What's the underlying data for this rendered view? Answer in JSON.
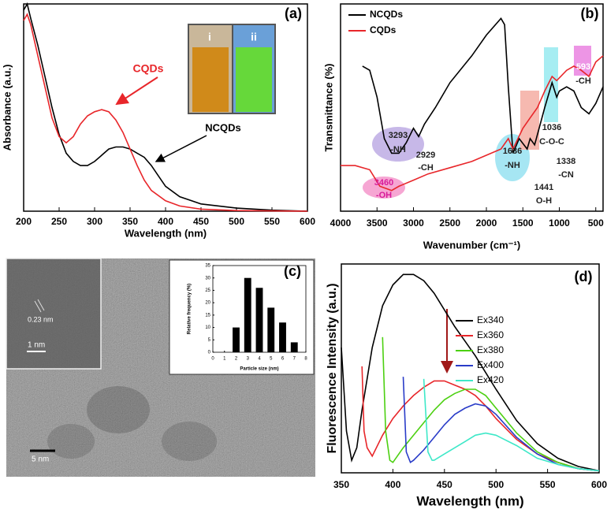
{
  "chart_data": [
    {
      "type": "line",
      "label": "(a)",
      "x_label": "Wavelength (nm)",
      "y_label": "Absorbance (a.u.)",
      "xlim": [
        200,
        600
      ],
      "xticks": [
        200,
        250,
        300,
        350,
        400,
        450,
        500,
        550,
        600
      ],
      "ylim": [
        0,
        1
      ],
      "inset_labels": [
        "i",
        "ii"
      ],
      "series": [
        {
          "name": "NCQDs",
          "color": "#000000",
          "x": [
            200,
            205,
            210,
            220,
            230,
            240,
            250,
            260,
            270,
            280,
            290,
            300,
            310,
            320,
            330,
            340,
            350,
            360,
            370,
            380,
            390,
            400,
            420,
            450,
            500,
            550,
            600
          ],
          "values": [
            0.97,
            1.0,
            0.93,
            0.8,
            0.65,
            0.5,
            0.37,
            0.28,
            0.24,
            0.22,
            0.22,
            0.24,
            0.27,
            0.3,
            0.31,
            0.31,
            0.3,
            0.28,
            0.26,
            0.22,
            0.17,
            0.12,
            0.07,
            0.035,
            0.015,
            0.005,
            0.0
          ]
        },
        {
          "name": "CQDs",
          "color": "#e8262a",
          "x": [
            200,
            205,
            210,
            220,
            230,
            240,
            250,
            260,
            270,
            280,
            290,
            300,
            310,
            320,
            330,
            340,
            350,
            360,
            370,
            380,
            400,
            420,
            450,
            500,
            600
          ],
          "values": [
            0.92,
            0.95,
            0.9,
            0.75,
            0.6,
            0.45,
            0.36,
            0.33,
            0.36,
            0.42,
            0.46,
            0.48,
            0.49,
            0.48,
            0.44,
            0.38,
            0.3,
            0.22,
            0.15,
            0.1,
            0.05,
            0.025,
            0.01,
            0.003,
            0.0
          ]
        }
      ]
    },
    {
      "type": "line",
      "label": "(b)",
      "x_label": "Wavenumber (cm⁻¹)",
      "y_label": "Transmittance (%)",
      "xlim": [
        4000,
        400
      ],
      "xticks": [
        4000,
        3500,
        3000,
        2500,
        2000,
        1500,
        1000,
        500
      ],
      "ylim": [
        0,
        1
      ],
      "legend": "top-left",
      "annotations": [
        "3293",
        "-NH",
        "2929",
        "-CH",
        "3460",
        "-OH",
        "1636",
        "-NH",
        "1441",
        "O-H",
        "1338",
        "-CN",
        "1036",
        "C-O-C",
        "593",
        "-CH"
      ],
      "series": [
        {
          "name": "NCQDs",
          "color": "#000000",
          "x": [
            3700,
            3600,
            3500,
            3400,
            3300,
            3200,
            3100,
            3000,
            2929,
            2850,
            2700,
            2500,
            2200,
            2000,
            1800,
            1750,
            1700,
            1636,
            1550,
            1441,
            1400,
            1338,
            1200,
            1100,
            1036,
            1000,
            900,
            800,
            700,
            593,
            500,
            400
          ],
          "values": [
            0.7,
            0.68,
            0.55,
            0.35,
            0.28,
            0.28,
            0.33,
            0.4,
            0.36,
            0.42,
            0.5,
            0.62,
            0.75,
            0.85,
            0.93,
            0.9,
            0.6,
            0.28,
            0.35,
            0.3,
            0.35,
            0.32,
            0.5,
            0.62,
            0.55,
            0.58,
            0.6,
            0.58,
            0.5,
            0.47,
            0.52,
            0.6
          ]
        },
        {
          "name": "CQDs",
          "color": "#e8262a",
          "x": [
            4000,
            3800,
            3600,
            3460,
            3300,
            3200,
            3000,
            2800,
            2500,
            2200,
            2000,
            1800,
            1700,
            1636,
            1500,
            1400,
            1300,
            1200,
            1100,
            1036,
            900,
            800,
            700,
            593,
            500,
            400
          ],
          "values": [
            0.22,
            0.22,
            0.2,
            0.12,
            0.1,
            0.12,
            0.15,
            0.18,
            0.21,
            0.24,
            0.27,
            0.3,
            0.35,
            0.3,
            0.4,
            0.45,
            0.5,
            0.58,
            0.65,
            0.63,
            0.68,
            0.7,
            0.68,
            0.65,
            0.72,
            0.75
          ]
        }
      ]
    },
    {
      "type": "bar",
      "x_label": "Particle size (nm)",
      "y_label": "Relative frequency (%)",
      "color": "#000000",
      "x": [
        2,
        3,
        4,
        5,
        6,
        7
      ],
      "values": [
        10,
        30,
        26,
        18,
        12,
        4
      ],
      "xlim": [
        0,
        8
      ],
      "xticks": [
        0,
        1,
        2,
        3,
        4,
        5,
        6,
        7,
        8
      ],
      "ylim": [
        0,
        35
      ],
      "yticks": [
        0,
        5,
        10,
        15,
        20,
        25,
        30,
        35
      ]
    },
    {
      "type": "line",
      "label": "(d)",
      "x_label": "Wavelength (nm)",
      "y_label": "Fluorescence  Intensity (a.u.)",
      "xlim": [
        350,
        600
      ],
      "xticks": [
        350,
        400,
        450,
        500,
        550,
        600
      ],
      "ylim": [
        0,
        100
      ],
      "legend": "top-right",
      "series": [
        {
          "name": "Ex340",
          "color": "#000000",
          "x": [
            350,
            355,
            360,
            365,
            370,
            380,
            390,
            400,
            410,
            420,
            430,
            440,
            450,
            460,
            470,
            480,
            490,
            500,
            520,
            540,
            560,
            580,
            600
          ],
          "values": [
            60,
            20,
            6,
            12,
            30,
            60,
            80,
            90,
            95,
            95,
            92,
            86,
            78,
            70,
            63,
            56,
            48,
            40,
            25,
            14,
            7,
            3,
            1
          ]
        },
        {
          "name": "Ex360",
          "color": "#e8262a",
          "x": [
            370,
            372,
            375,
            380,
            390,
            400,
            410,
            420,
            430,
            440,
            450,
            460,
            470,
            480,
            490,
            500,
            520,
            540,
            560,
            580,
            600
          ],
          "values": [
            51,
            20,
            12,
            8,
            18,
            26,
            32,
            37,
            41,
            44,
            44,
            42,
            40,
            37,
            32,
            26,
            16,
            9,
            5,
            2,
            1
          ]
        },
        {
          "name": "Ex380",
          "color": "#4cd011",
          "x": [
            390,
            393,
            397,
            400,
            410,
            420,
            430,
            440,
            450,
            460,
            470,
            480,
            490,
            500,
            520,
            540,
            560,
            580,
            600
          ],
          "values": [
            65,
            20,
            6,
            5,
            12,
            18,
            24,
            30,
            35,
            38,
            40,
            40,
            37,
            31,
            19,
            10,
            5,
            2,
            1
          ]
        },
        {
          "name": "Ex400",
          "color": "#2a3cc8",
          "x": [
            410,
            413,
            417,
            420,
            430,
            440,
            450,
            460,
            470,
            480,
            490,
            500,
            520,
            540,
            560,
            580,
            600
          ],
          "values": [
            46,
            10,
            5,
            6,
            11,
            17,
            23,
            28,
            31,
            33,
            32,
            28,
            17,
            9,
            4,
            2,
            1
          ]
        },
        {
          "name": "Ex420",
          "color": "#3ee8c8",
          "x": [
            430,
            434,
            438,
            440,
            450,
            460,
            470,
            480,
            490,
            500,
            520,
            540,
            560,
            580,
            600
          ],
          "values": [
            45,
            10,
            6,
            6,
            9,
            12,
            15,
            18,
            19,
            18,
            13,
            7,
            4,
            2,
            1
          ]
        }
      ]
    }
  ],
  "image": {
    "label": "(c)",
    "texts": [
      "0.23 nm",
      "1 nm",
      "5 nm"
    ]
  }
}
